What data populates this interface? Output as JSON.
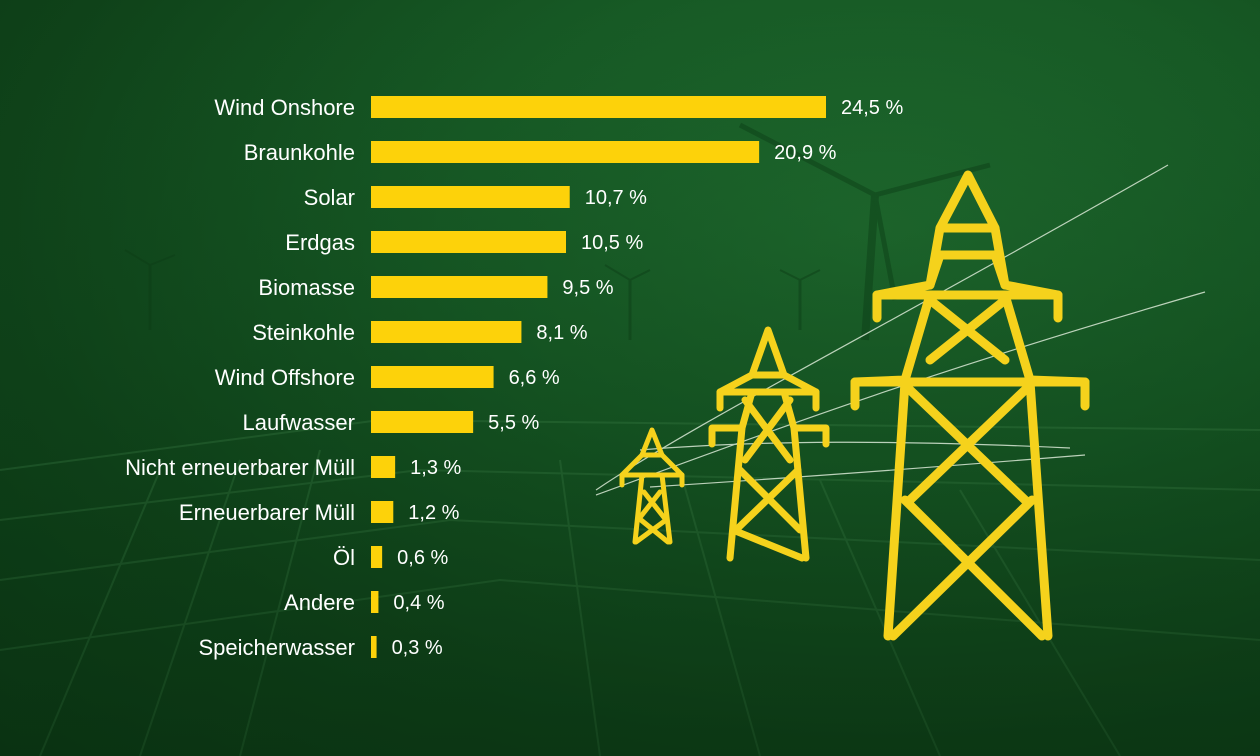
{
  "colors": {
    "bar": "#fdd20a",
    "pylon": "#f5d21c",
    "text": "#ffffff",
    "background": "#165a26"
  },
  "icons": [
    "power-pylon-icon",
    "wind-turbine-icon",
    "solar-field-icon"
  ],
  "chart_data": {
    "type": "bar",
    "orientation": "horizontal",
    "categories": [
      "Wind Onshore",
      "Braunkohle",
      "Solar",
      "Erdgas",
      "Biomasse",
      "Steinkohle",
      "Wind Offshore",
      "Laufwasser",
      "Nicht erneuerbarer Müll",
      "Erneuerbarer Müll",
      "Öl",
      "Andere",
      "Speicherwasser"
    ],
    "values": [
      24.5,
      20.9,
      10.7,
      10.5,
      9.5,
      8.1,
      6.6,
      5.5,
      1.3,
      1.2,
      0.6,
      0.4,
      0.3
    ],
    "value_labels": [
      "24,5 %",
      "20,9 %",
      "10,7 %",
      "10,5 %",
      "9,5 %",
      "8,1 %",
      "6,6 %",
      "5,5 %",
      "1,3 %",
      "1,2 %",
      "0,6 %",
      "0,4 %",
      "0,3 %"
    ],
    "unit": "%",
    "xlim": [
      0,
      24.5
    ],
    "grid": false,
    "legend": "none"
  }
}
